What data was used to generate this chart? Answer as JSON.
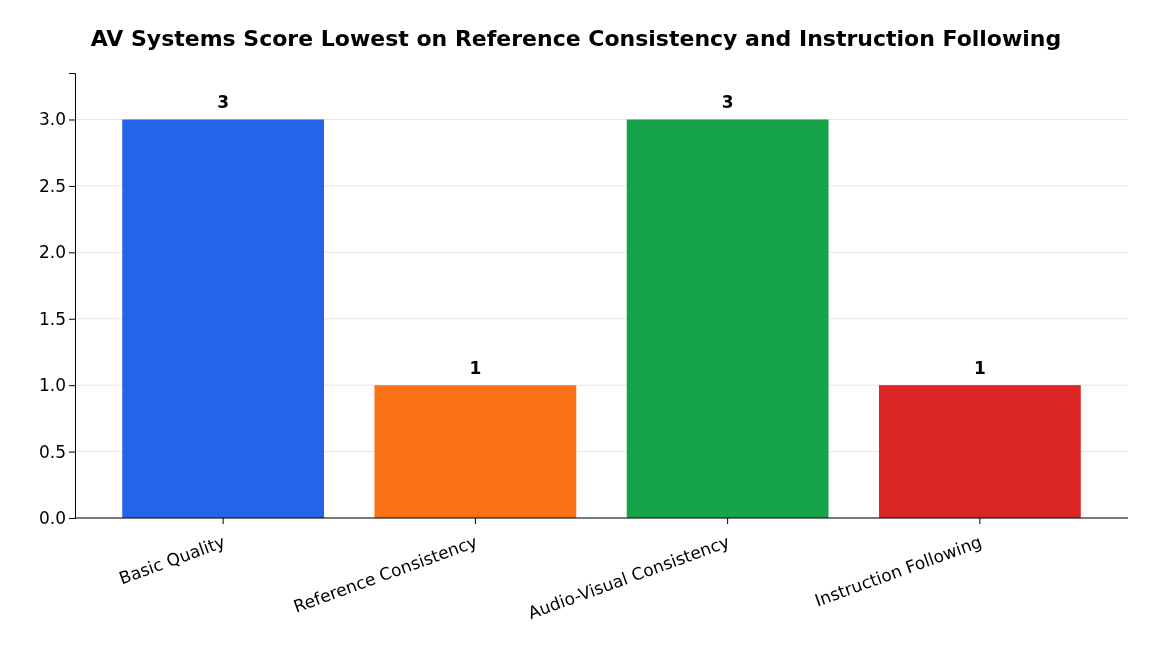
{
  "chart_data": {
    "type": "bar",
    "title": "AV Systems Score Lowest on Reference Consistency and Instruction Following",
    "categories": [
      "Basic Quality",
      "Reference Consistency",
      "Audio-Visual Consistency",
      "Instruction Following"
    ],
    "values": [
      3,
      1,
      3,
      1
    ],
    "colors": [
      "#2563eb",
      "#f97316",
      "#16a34a",
      "#dc2626"
    ],
    "ylim": [
      0,
      3.35
    ],
    "yticks": [
      {
        "value": 0,
        "label": "0.0"
      },
      {
        "value": 0.5,
        "label": "0.5"
      },
      {
        "value": 1,
        "label": "1.0"
      },
      {
        "value": 1.5,
        "label": "1.5"
      },
      {
        "value": 2,
        "label": "2.0"
      },
      {
        "value": 2.5,
        "label": "2.5"
      },
      {
        "value": 3,
        "label": "3.0"
      }
    ],
    "grid": "y",
    "data_labels": true
  }
}
